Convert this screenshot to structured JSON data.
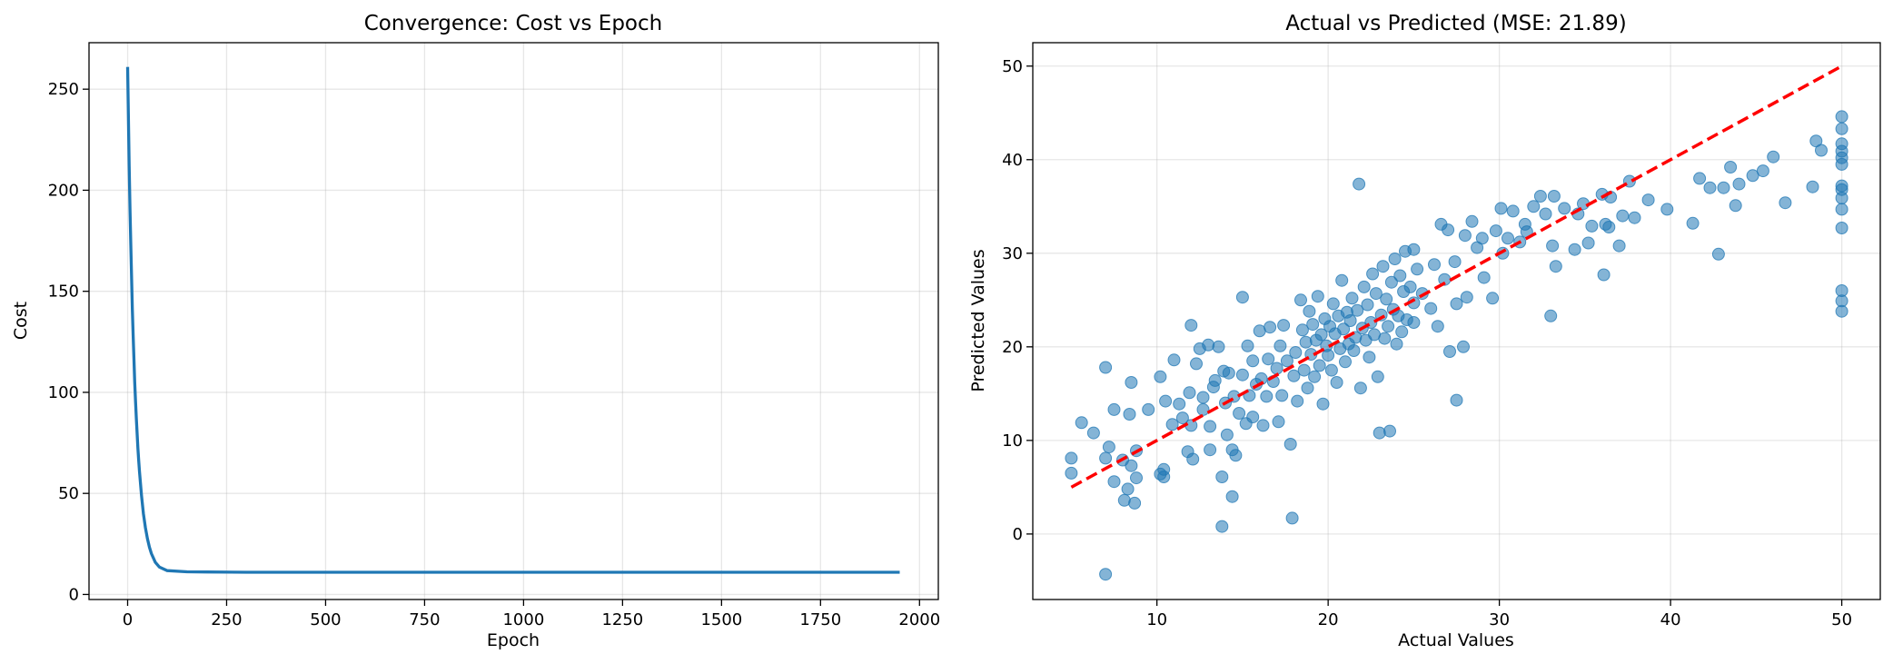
{
  "chart_data": [
    {
      "type": "line",
      "title": "Convergence: Cost vs Epoch",
      "xlabel": "Epoch",
      "ylabel": "Cost",
      "xlim": [
        -97.5,
        2047.5
      ],
      "ylim": [
        -2.5,
        273
      ],
      "xticks": [
        0,
        250,
        500,
        750,
        1000,
        1250,
        1500,
        1750,
        2000
      ],
      "yticks": [
        0,
        50,
        100,
        150,
        200,
        250
      ],
      "grid": true,
      "color": "#1f77b4",
      "series": [
        {
          "x": [
            0,
            2,
            4,
            6,
            8,
            10,
            12,
            14,
            16,
            18,
            20,
            22,
            24,
            26,
            28,
            30,
            35,
            40,
            45,
            50,
            55,
            60,
            70,
            80,
            100,
            150,
            200,
            300,
            500,
            750,
            1000,
            1250,
            1500,
            1750,
            1950
          ],
          "y": [
            261,
            235,
            212,
            191,
            173,
            156,
            141,
            128,
            116,
            105,
            95.6,
            87,
            79.3,
            72.4,
            66.2,
            60.6,
            48.9,
            39.9,
            33,
            27.6,
            23.4,
            20.2,
            15.9,
            13.6,
            11.8,
            11.2,
            11.1,
            11,
            11,
            11,
            11,
            11,
            11,
            11,
            11
          ]
        }
      ]
    },
    {
      "type": "scatter",
      "title": "Actual vs Predicted (MSE: 21.89)",
      "xlabel": "Actual Values",
      "ylabel": "Predicted Values",
      "xlim": [
        2.75,
        52.25
      ],
      "ylim": [
        -7,
        52.5
      ],
      "xticks": [
        10,
        20,
        30,
        40,
        50
      ],
      "yticks": [
        0,
        10,
        20,
        30,
        40,
        50
      ],
      "grid": true,
      "point_color": "#1f77b4",
      "reference_line": {
        "x": [
          5,
          50
        ],
        "y": [
          5,
          50
        ],
        "color": "#ff0000",
        "style": "dashed"
      },
      "points": [
        [
          5.0,
          8.1
        ],
        [
          5.0,
          6.5
        ],
        [
          5.6,
          11.9
        ],
        [
          6.3,
          10.8
        ],
        [
          7.0,
          -4.3
        ],
        [
          7.0,
          17.8
        ],
        [
          7.0,
          8.1
        ],
        [
          7.2,
          9.3
        ],
        [
          7.5,
          5.6
        ],
        [
          7.5,
          13.3
        ],
        [
          8.0,
          7.9
        ],
        [
          8.1,
          3.6
        ],
        [
          8.3,
          4.8
        ],
        [
          8.4,
          12.8
        ],
        [
          8.5,
          7.3
        ],
        [
          8.5,
          16.2
        ],
        [
          8.7,
          3.3
        ],
        [
          8.8,
          6.0
        ],
        [
          8.8,
          8.9
        ],
        [
          9.5,
          13.3
        ],
        [
          10.2,
          16.8
        ],
        [
          10.2,
          6.4
        ],
        [
          10.4,
          6.1
        ],
        [
          10.4,
          6.9
        ],
        [
          10.5,
          14.2
        ],
        [
          10.9,
          11.7
        ],
        [
          11.0,
          18.6
        ],
        [
          11.3,
          13.9
        ],
        [
          11.5,
          12.4
        ],
        [
          11.8,
          8.8
        ],
        [
          11.9,
          15.1
        ],
        [
          12.0,
          22.3
        ],
        [
          12.0,
          11.6
        ],
        [
          12.1,
          8.0
        ],
        [
          12.3,
          18.2
        ],
        [
          12.5,
          19.8
        ],
        [
          12.7,
          13.3
        ],
        [
          12.7,
          14.6
        ],
        [
          13.0,
          20.2
        ],
        [
          13.1,
          9.0
        ],
        [
          13.1,
          11.5
        ],
        [
          13.3,
          15.7
        ],
        [
          13.4,
          16.4
        ],
        [
          13.6,
          20.0
        ],
        [
          13.8,
          6.1
        ],
        [
          13.8,
          0.8
        ],
        [
          13.9,
          17.4
        ],
        [
          14.0,
          14.0
        ],
        [
          14.1,
          10.6
        ],
        [
          14.2,
          17.2
        ],
        [
          14.4,
          9.0
        ],
        [
          14.4,
          4.0
        ],
        [
          14.5,
          14.7
        ],
        [
          14.6,
          8.4
        ],
        [
          14.8,
          12.9
        ],
        [
          15.0,
          25.3
        ],
        [
          15.0,
          17.0
        ],
        [
          15.2,
          11.8
        ],
        [
          15.3,
          20.1
        ],
        [
          15.4,
          14.8
        ],
        [
          15.6,
          18.5
        ],
        [
          15.6,
          12.5
        ],
        [
          15.8,
          16.0
        ],
        [
          16.0,
          21.7
        ],
        [
          16.1,
          16.6
        ],
        [
          16.2,
          11.6
        ],
        [
          16.4,
          14.7
        ],
        [
          16.5,
          18.7
        ],
        [
          16.6,
          22.1
        ],
        [
          16.8,
          16.3
        ],
        [
          17.0,
          17.7
        ],
        [
          17.1,
          12.0
        ],
        [
          17.2,
          20.1
        ],
        [
          17.3,
          14.8
        ],
        [
          17.4,
          22.3
        ],
        [
          17.6,
          18.5
        ],
        [
          17.8,
          9.6
        ],
        [
          17.9,
          1.7
        ],
        [
          18.0,
          16.9
        ],
        [
          18.1,
          19.4
        ],
        [
          18.2,
          14.2
        ],
        [
          18.4,
          25.0
        ],
        [
          18.5,
          21.8
        ],
        [
          18.6,
          17.5
        ],
        [
          18.7,
          20.5
        ],
        [
          18.8,
          15.6
        ],
        [
          18.9,
          23.8
        ],
        [
          19.0,
          19.2
        ],
        [
          19.1,
          22.4
        ],
        [
          19.2,
          16.8
        ],
        [
          19.3,
          20.7
        ],
        [
          19.4,
          25.4
        ],
        [
          19.5,
          18.0
        ],
        [
          19.6,
          21.3
        ],
        [
          19.7,
          13.9
        ],
        [
          19.8,
          23.0
        ],
        [
          19.9,
          20.1
        ],
        [
          20.0,
          19.1
        ],
        [
          20.1,
          22.2
        ],
        [
          20.2,
          17.5
        ],
        [
          20.3,
          24.6
        ],
        [
          20.4,
          21.4
        ],
        [
          20.5,
          16.2
        ],
        [
          20.6,
          23.3
        ],
        [
          20.7,
          19.8
        ],
        [
          20.8,
          27.1
        ],
        [
          20.9,
          21.9
        ],
        [
          21.0,
          18.4
        ],
        [
          21.1,
          23.7
        ],
        [
          21.2,
          20.3
        ],
        [
          21.3,
          22.8
        ],
        [
          21.4,
          25.2
        ],
        [
          21.5,
          19.6
        ],
        [
          21.6,
          21.0
        ],
        [
          21.7,
          23.9
        ],
        [
          21.8,
          37.4
        ],
        [
          21.9,
          15.6
        ],
        [
          22.0,
          22.0
        ],
        [
          22.1,
          26.4
        ],
        [
          22.2,
          20.7
        ],
        [
          22.3,
          24.5
        ],
        [
          22.4,
          18.9
        ],
        [
          22.5,
          22.6
        ],
        [
          22.6,
          27.8
        ],
        [
          22.7,
          21.3
        ],
        [
          22.8,
          25.7
        ],
        [
          22.9,
          16.8
        ],
        [
          23.0,
          10.8
        ],
        [
          23.1,
          23.4
        ],
        [
          23.2,
          28.6
        ],
        [
          23.3,
          20.9
        ],
        [
          23.4,
          25.1
        ],
        [
          23.5,
          22.2
        ],
        [
          23.6,
          11.0
        ],
        [
          23.7,
          26.9
        ],
        [
          23.8,
          24.0
        ],
        [
          23.9,
          29.4
        ],
        [
          24.0,
          20.3
        ],
        [
          24.1,
          23.3
        ],
        [
          24.2,
          27.6
        ],
        [
          24.3,
          21.6
        ],
        [
          24.4,
          25.9
        ],
        [
          24.5,
          30.2
        ],
        [
          24.6,
          22.9
        ],
        [
          24.8,
          26.4
        ],
        [
          25.0,
          24.7
        ],
        [
          25.0,
          30.4
        ],
        [
          25.0,
          22.6
        ],
        [
          25.2,
          28.3
        ],
        [
          25.5,
          25.7
        ],
        [
          26.0,
          24.1
        ],
        [
          26.2,
          28.8
        ],
        [
          26.4,
          22.2
        ],
        [
          26.6,
          33.1
        ],
        [
          26.8,
          27.2
        ],
        [
          27.0,
          32.5
        ],
        [
          27.1,
          19.5
        ],
        [
          27.4,
          29.1
        ],
        [
          27.5,
          14.3
        ],
        [
          27.5,
          24.6
        ],
        [
          27.9,
          20.0
        ],
        [
          28.0,
          31.9
        ],
        [
          28.1,
          25.3
        ],
        [
          28.4,
          33.4
        ],
        [
          28.7,
          30.6
        ],
        [
          29.0,
          31.6
        ],
        [
          29.1,
          27.4
        ],
        [
          29.6,
          25.2
        ],
        [
          29.8,
          32.4
        ],
        [
          30.1,
          34.8
        ],
        [
          30.2,
          30.0
        ],
        [
          30.5,
          31.6
        ],
        [
          30.8,
          34.5
        ],
        [
          31.2,
          31.2
        ],
        [
          31.5,
          33.1
        ],
        [
          31.6,
          32.3
        ],
        [
          32.0,
          35.0
        ],
        [
          32.4,
          36.1
        ],
        [
          32.7,
          34.2
        ],
        [
          33.0,
          23.3
        ],
        [
          33.1,
          30.8
        ],
        [
          33.2,
          36.1
        ],
        [
          33.3,
          28.6
        ],
        [
          33.8,
          34.8
        ],
        [
          34.4,
          30.4
        ],
        [
          34.6,
          34.2
        ],
        [
          34.9,
          35.3
        ],
        [
          35.2,
          31.1
        ],
        [
          35.4,
          32.9
        ],
        [
          36.0,
          36.3
        ],
        [
          36.1,
          27.7
        ],
        [
          36.2,
          33.1
        ],
        [
          36.4,
          32.8
        ],
        [
          36.5,
          36.0
        ],
        [
          37.0,
          30.8
        ],
        [
          37.2,
          34.0
        ],
        [
          37.6,
          37.7
        ],
        [
          37.9,
          33.8
        ],
        [
          38.7,
          35.7
        ],
        [
          39.8,
          34.7
        ],
        [
          41.3,
          33.2
        ],
        [
          41.7,
          38.0
        ],
        [
          42.3,
          37.0
        ],
        [
          42.8,
          29.9
        ],
        [
          43.1,
          37.0
        ],
        [
          43.5,
          39.2
        ],
        [
          43.8,
          35.1
        ],
        [
          44.0,
          37.4
        ],
        [
          44.8,
          38.3
        ],
        [
          45.4,
          38.8
        ],
        [
          46.0,
          40.3
        ],
        [
          46.7,
          35.4
        ],
        [
          48.3,
          37.1
        ],
        [
          48.5,
          42.0
        ],
        [
          48.8,
          41.0
        ],
        [
          50.0,
          44.6
        ],
        [
          50.0,
          43.3
        ],
        [
          50.0,
          41.7
        ],
        [
          50.0,
          40.9
        ],
        [
          50.0,
          40.2
        ],
        [
          50.0,
          39.5
        ],
        [
          50.0,
          37.2
        ],
        [
          50.0,
          36.8
        ],
        [
          50.0,
          35.9
        ],
        [
          50.0,
          34.7
        ],
        [
          50.0,
          32.7
        ],
        [
          50.0,
          26.0
        ],
        [
          50.0,
          24.9
        ],
        [
          50.0,
          23.8
        ]
      ]
    }
  ]
}
